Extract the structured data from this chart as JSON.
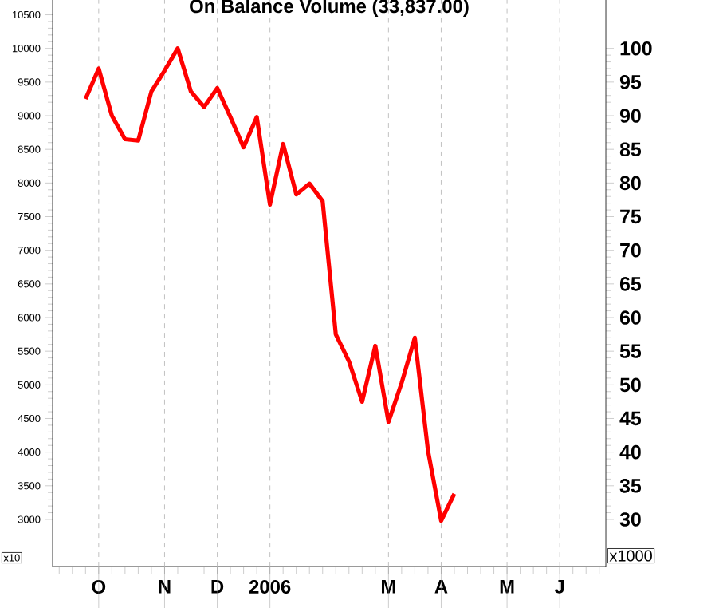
{
  "chart_data": {
    "type": "line",
    "title": "On Balance Volume (33,837.00)",
    "categories": [
      null,
      null,
      null,
      "O",
      null,
      null,
      null,
      null,
      "N",
      null,
      null,
      null,
      "D",
      null,
      null,
      null,
      "2006",
      null,
      null,
      null,
      null,
      null,
      null,
      null,
      null,
      "M",
      null,
      null,
      null,
      "A",
      null,
      null,
      null,
      null,
      "M",
      null,
      null,
      null,
      "J",
      null,
      null,
      null
    ],
    "series": [
      {
        "color": "#ff0000",
        "values": [
          null,
          null,
          9250,
          9700,
          9000,
          8650,
          8630,
          9360,
          9670,
          10000,
          9360,
          9130,
          9410,
          8980,
          8530,
          8980,
          7680,
          8580,
          7830,
          7990,
          7730,
          5750,
          5350,
          4750,
          5580,
          4450,
          5030,
          5700,
          4020,
          2980,
          3380,
          null,
          null,
          null,
          null,
          null,
          null,
          null,
          null,
          null,
          null,
          null
        ]
      }
    ],
    "ylim": [
      2300,
      10720
    ],
    "yticks": [
      3000,
      3500,
      4000,
      4500,
      5000,
      5500,
      6000,
      6500,
      7000,
      7500,
      8000,
      8500,
      9000,
      9500,
      10000,
      10500
    ],
    "y2lim": [
      23,
      107.2
    ],
    "y2ticks": [
      30,
      35,
      40,
      45,
      50,
      55,
      60,
      65,
      70,
      75,
      80,
      85,
      90,
      95,
      100
    ],
    "annotations": [
      "x10",
      "x1000"
    ],
    "grid": "x",
    "line_style": "solid"
  }
}
